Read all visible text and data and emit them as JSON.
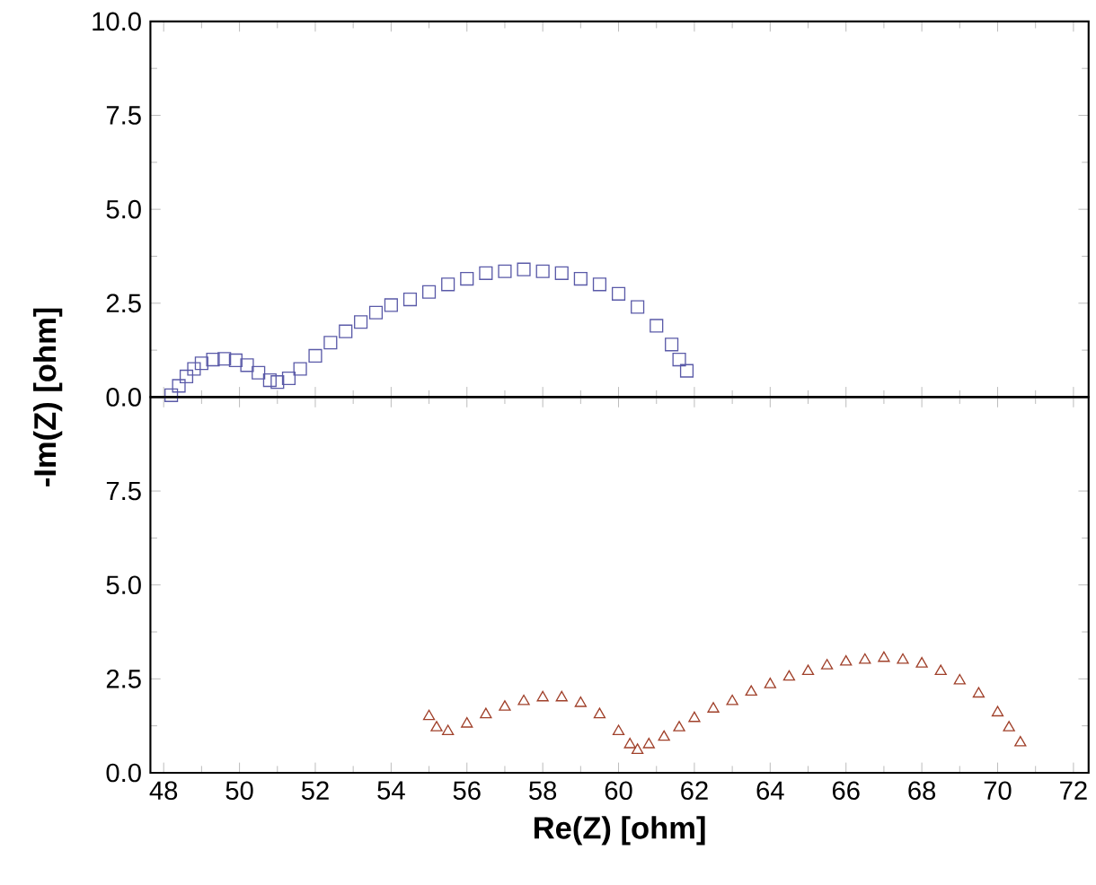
{
  "chart_data": [
    {
      "type": "scatter",
      "marker": "square",
      "tick_labels": "y",
      "xlim": [
        47.65,
        72.4
      ],
      "ylim": [
        0,
        10
      ],
      "yticks": [
        {
          "value": 0,
          "label": "0.0"
        },
        {
          "value": 2.5,
          "label": "2.5"
        },
        {
          "value": 5,
          "label": "5.0"
        },
        {
          "value": 7.5,
          "label": "7.5"
        },
        {
          "value": 10,
          "label": "10.0"
        }
      ],
      "series": [
        {
          "color": "#5a5aa8",
          "x": [
            48.2,
            48.4,
            48.6,
            48.8,
            49.0,
            49.3,
            49.6,
            49.9,
            50.2,
            50.5,
            50.8,
            51.0,
            51.3,
            51.6,
            52.0,
            52.4,
            52.8,
            53.2,
            53.6,
            54.0,
            54.5,
            55.0,
            55.5,
            56.0,
            56.5,
            57.0,
            57.5,
            58.0,
            58.5,
            59.0,
            59.5,
            60.0,
            60.5,
            61.0,
            61.4,
            61.6,
            61.8
          ],
          "values": [
            0.05,
            0.3,
            0.55,
            0.75,
            0.9,
            1.0,
            1.02,
            0.98,
            0.85,
            0.65,
            0.45,
            0.4,
            0.5,
            0.75,
            1.1,
            1.45,
            1.75,
            2.0,
            2.25,
            2.45,
            2.6,
            2.8,
            3.0,
            3.15,
            3.3,
            3.35,
            3.4,
            3.35,
            3.3,
            3.15,
            3.0,
            2.75,
            2.4,
            1.9,
            1.4,
            1.0,
            0.7
          ]
        }
      ]
    },
    {
      "type": "scatter",
      "marker": "triangle",
      "xlabel": "Re(Z) [ohm]",
      "ylabel": "-Im(Z) [ohm]",
      "xlim": [
        47.65,
        72.4
      ],
      "ylim": [
        0,
        10
      ],
      "xticks": [
        48,
        50,
        52,
        54,
        56,
        58,
        60,
        62,
        64,
        66,
        68,
        70,
        72
      ],
      "yticks": [
        {
          "value": 0,
          "label": "0.0"
        },
        {
          "value": 2.5,
          "label": "2.5"
        },
        {
          "value": 5,
          "label": "5.0"
        },
        {
          "value": 7.5,
          "label": "7.5"
        }
      ],
      "series": [
        {
          "color": "#a0402a",
          "x": [
            55.0,
            55.2,
            55.5,
            56.0,
            56.5,
            57.0,
            57.5,
            58.0,
            58.5,
            59.0,
            59.5,
            60.0,
            60.3,
            60.5,
            60.8,
            61.2,
            61.6,
            62.0,
            62.5,
            63.0,
            63.5,
            64.0,
            64.5,
            65.0,
            65.5,
            66.0,
            66.5,
            67.0,
            67.5,
            68.0,
            68.5,
            69.0,
            69.5,
            70.0,
            70.3,
            70.6
          ],
          "values": [
            1.5,
            1.2,
            1.1,
            1.3,
            1.55,
            1.75,
            1.9,
            2.0,
            2.0,
            1.85,
            1.55,
            1.1,
            0.75,
            0.6,
            0.75,
            0.95,
            1.2,
            1.45,
            1.7,
            1.9,
            2.15,
            2.35,
            2.55,
            2.7,
            2.85,
            2.95,
            3.0,
            3.05,
            3.0,
            2.9,
            2.7,
            2.45,
            2.1,
            1.6,
            1.2,
            0.8
          ]
        }
      ]
    }
  ]
}
